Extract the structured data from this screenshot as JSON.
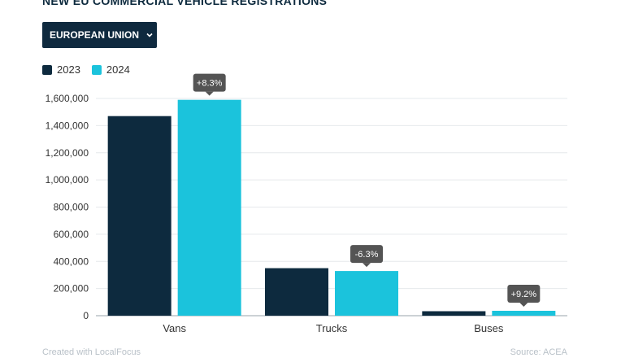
{
  "header": {
    "title": "NEW EU COMMERCIAL VEHICLE REGISTRATIONS"
  },
  "filter": {
    "label": "EUROPEAN UNION",
    "icon": "chevron-down-icon"
  },
  "footer": {
    "credit": "Created with LocalFocus",
    "source": "Source: ACEA"
  },
  "colors": {
    "series_2023": "#0d2a3e",
    "series_2024": "#1bc3dc",
    "badge": "#545454"
  },
  "chart_data": {
    "type": "bar",
    "title": "NEW EU COMMERCIAL VEHICLE REGISTRATIONS",
    "categories": [
      "Vans",
      "Trucks",
      "Buses"
    ],
    "series": [
      {
        "name": "2023",
        "values": [
          1470000,
          350000,
          33000
        ]
      },
      {
        "name": "2024",
        "values": [
          1590000,
          329000,
          36000
        ]
      }
    ],
    "change_labels": [
      "+8.3%",
      "-6.3%",
      "+9.2%"
    ],
    "yticks": [
      0,
      200000,
      400000,
      600000,
      800000,
      1000000,
      1200000,
      1400000,
      1600000
    ],
    "ytick_labels": [
      "0",
      "200,000",
      "400,000",
      "600,000",
      "800,000",
      "1,000,000",
      "1,200,000",
      "1,400,000",
      "1,600,000"
    ],
    "ylim": [
      0,
      1600000
    ],
    "xlabel": "",
    "ylabel": "",
    "grid": true,
    "legend_position": "top-left"
  }
}
